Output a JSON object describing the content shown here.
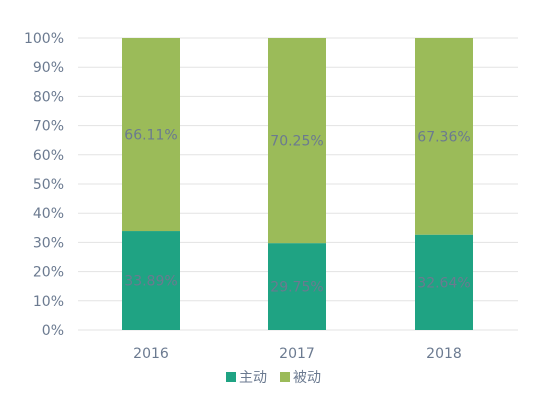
{
  "chart_data": {
    "type": "bar",
    "stacked": true,
    "percent": true,
    "categories": [
      "2016",
      "2017",
      "2018"
    ],
    "series": [
      {
        "name": "主动",
        "color": "#1fa383",
        "values": [
          33.89,
          29.75,
          32.64
        ],
        "labels": [
          "33.89%",
          "29.75%",
          "32.64%"
        ]
      },
      {
        "name": "被动",
        "color": "#9bbb59",
        "values": [
          66.11,
          70.25,
          67.36
        ],
        "labels": [
          "66.11%",
          "70.25%",
          "67.36%"
        ]
      }
    ],
    "ylim": [
      0,
      100
    ],
    "yticks": [
      "0%",
      "10%",
      "20%",
      "30%",
      "40%",
      "50%",
      "60%",
      "70%",
      "80%",
      "90%",
      "100%"
    ],
    "grid": true,
    "legend": "bottom",
    "xlabel": "",
    "ylabel": ""
  }
}
